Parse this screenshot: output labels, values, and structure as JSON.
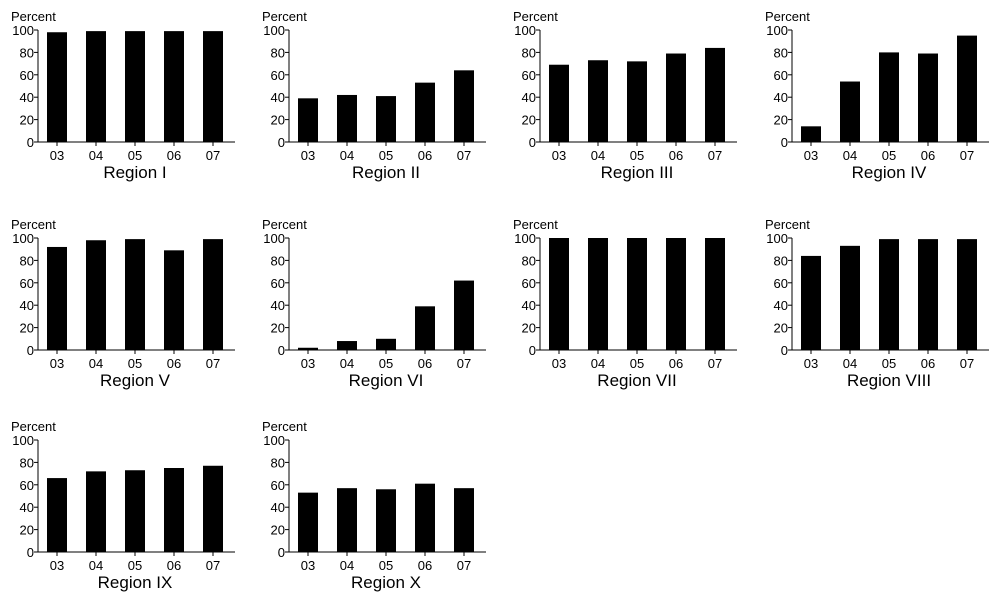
{
  "chart_data": [
    {
      "type": "bar",
      "title": "Region I",
      "ylabel": "Percent",
      "categories": [
        "03",
        "04",
        "05",
        "06",
        "07"
      ],
      "values": [
        98,
        99,
        99,
        99,
        99
      ],
      "ylim": [
        0,
        100
      ],
      "yticks": [
        0,
        20,
        40,
        60,
        80,
        100
      ],
      "grid": false,
      "color": "#000000"
    },
    {
      "type": "bar",
      "title": "Region II",
      "ylabel": "Percent",
      "categories": [
        "03",
        "04",
        "05",
        "06",
        "07"
      ],
      "values": [
        39,
        42,
        41,
        53,
        64
      ],
      "ylim": [
        0,
        100
      ],
      "yticks": [
        0,
        20,
        40,
        60,
        80,
        100
      ],
      "grid": false,
      "color": "#000000"
    },
    {
      "type": "bar",
      "title": "Region III",
      "ylabel": "Percent",
      "categories": [
        "03",
        "04",
        "05",
        "06",
        "07"
      ],
      "values": [
        69,
        73,
        72,
        79,
        84
      ],
      "ylim": [
        0,
        100
      ],
      "yticks": [
        0,
        20,
        40,
        60,
        80,
        100
      ],
      "grid": false,
      "color": "#000000"
    },
    {
      "type": "bar",
      "title": "Region IV",
      "ylabel": "Percent",
      "categories": [
        "03",
        "04",
        "05",
        "06",
        "07"
      ],
      "values": [
        14,
        54,
        80,
        79,
        95
      ],
      "ylim": [
        0,
        100
      ],
      "yticks": [
        0,
        20,
        40,
        60,
        80,
        100
      ],
      "grid": false,
      "color": "#000000"
    },
    {
      "type": "bar",
      "title": "Region V",
      "ylabel": "Percent",
      "categories": [
        "03",
        "04",
        "05",
        "06",
        "07"
      ],
      "values": [
        92,
        98,
        99,
        89,
        99
      ],
      "ylim": [
        0,
        100
      ],
      "yticks": [
        0,
        20,
        40,
        60,
        80,
        100
      ],
      "grid": false,
      "color": "#000000"
    },
    {
      "type": "bar",
      "title": "Region VI",
      "ylabel": "Percent",
      "categories": [
        "03",
        "04",
        "05",
        "06",
        "07"
      ],
      "values": [
        2,
        8,
        10,
        39,
        62
      ],
      "ylim": [
        0,
        100
      ],
      "yticks": [
        0,
        20,
        40,
        60,
        80,
        100
      ],
      "grid": false,
      "color": "#000000"
    },
    {
      "type": "bar",
      "title": "Region VII",
      "ylabel": "Percent",
      "categories": [
        "03",
        "04",
        "05",
        "06",
        "07"
      ],
      "values": [
        100,
        100,
        100,
        100,
        100
      ],
      "ylim": [
        0,
        100
      ],
      "yticks": [
        0,
        20,
        40,
        60,
        80,
        100
      ],
      "grid": false,
      "color": "#000000"
    },
    {
      "type": "bar",
      "title": "Region VIII",
      "ylabel": "Percent",
      "categories": [
        "03",
        "04",
        "05",
        "06",
        "07"
      ],
      "values": [
        84,
        93,
        99,
        99,
        99
      ],
      "ylim": [
        0,
        100
      ],
      "yticks": [
        0,
        20,
        40,
        60,
        80,
        100
      ],
      "grid": false,
      "color": "#000000"
    },
    {
      "type": "bar",
      "title": "Region IX",
      "ylabel": "Percent",
      "categories": [
        "03",
        "04",
        "05",
        "06",
        "07"
      ],
      "values": [
        66,
        72,
        73,
        75,
        77
      ],
      "ylim": [
        0,
        100
      ],
      "yticks": [
        0,
        20,
        40,
        60,
        80,
        100
      ],
      "grid": false,
      "color": "#000000"
    },
    {
      "type": "bar",
      "title": "Region X",
      "ylabel": "Percent",
      "categories": [
        "03",
        "04",
        "05",
        "06",
        "07"
      ],
      "values": [
        53,
        57,
        56,
        61,
        57
      ],
      "ylim": [
        0,
        100
      ],
      "yticks": [
        0,
        20,
        40,
        60,
        80,
        100
      ],
      "grid": false,
      "color": "#000000"
    }
  ]
}
